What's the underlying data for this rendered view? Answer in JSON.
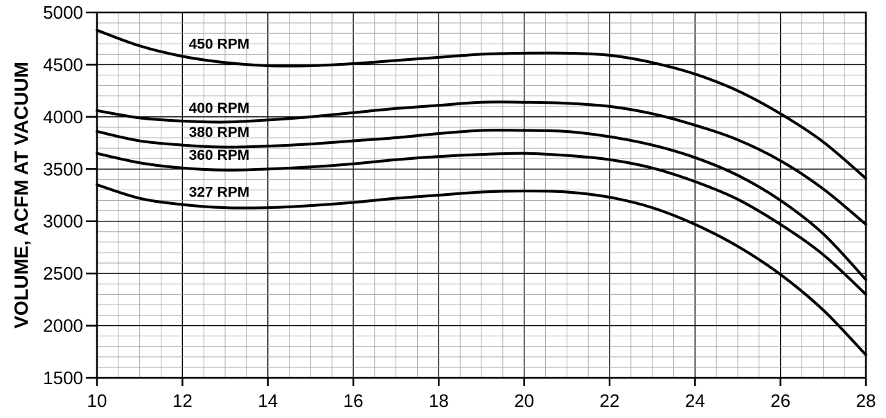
{
  "chart_data": {
    "type": "line",
    "title": "",
    "xlabel": "",
    "ylabel": "VOLUME, ACFM AT VACUUM",
    "xlim": [
      10,
      28
    ],
    "ylim": [
      1500,
      5000
    ],
    "x_ticks": [
      10,
      12,
      14,
      16,
      18,
      20,
      22,
      24,
      26,
      28
    ],
    "y_ticks": [
      1500,
      2000,
      2500,
      3000,
      3500,
      4000,
      4500,
      5000
    ],
    "x_ticks_display": [
      "10",
      "12",
      "14",
      "16",
      "18",
      "20",
      "22",
      "24",
      "26",
      "28"
    ],
    "y_ticks_display": [
      "1500",
      "2000",
      "2500",
      "3000",
      "3500",
      "4000",
      "4500",
      "5000"
    ],
    "grid": true,
    "x": [
      10,
      11,
      12,
      13,
      14,
      15,
      16,
      17,
      18,
      19,
      20,
      21,
      22,
      23,
      24,
      25,
      26,
      27,
      28
    ],
    "series": [
      {
        "name": "450 RPM",
        "values": [
          4830,
          4680,
          4580,
          4520,
          4490,
          4490,
          4510,
          4540,
          4570,
          4600,
          4610,
          4610,
          4590,
          4520,
          4410,
          4250,
          4030,
          3760,
          3410
        ]
      },
      {
        "name": "400 RPM",
        "values": [
          4060,
          3990,
          3960,
          3950,
          3970,
          4000,
          4040,
          4080,
          4110,
          4140,
          4140,
          4130,
          4100,
          4030,
          3920,
          3780,
          3580,
          3310,
          2970
        ]
      },
      {
        "name": "380 RPM",
        "values": [
          3860,
          3770,
          3730,
          3710,
          3720,
          3740,
          3770,
          3800,
          3840,
          3870,
          3870,
          3860,
          3810,
          3730,
          3610,
          3440,
          3200,
          2880,
          2440
        ]
      },
      {
        "name": "360 RPM",
        "values": [
          3650,
          3560,
          3510,
          3490,
          3500,
          3520,
          3550,
          3590,
          3620,
          3640,
          3650,
          3630,
          3590,
          3510,
          3380,
          3210,
          2970,
          2680,
          2300
        ]
      },
      {
        "name": "327 RPM",
        "values": [
          3350,
          3220,
          3160,
          3130,
          3130,
          3150,
          3180,
          3220,
          3250,
          3280,
          3290,
          3280,
          3230,
          3130,
          2970,
          2760,
          2490,
          2150,
          1720
        ]
      }
    ]
  }
}
